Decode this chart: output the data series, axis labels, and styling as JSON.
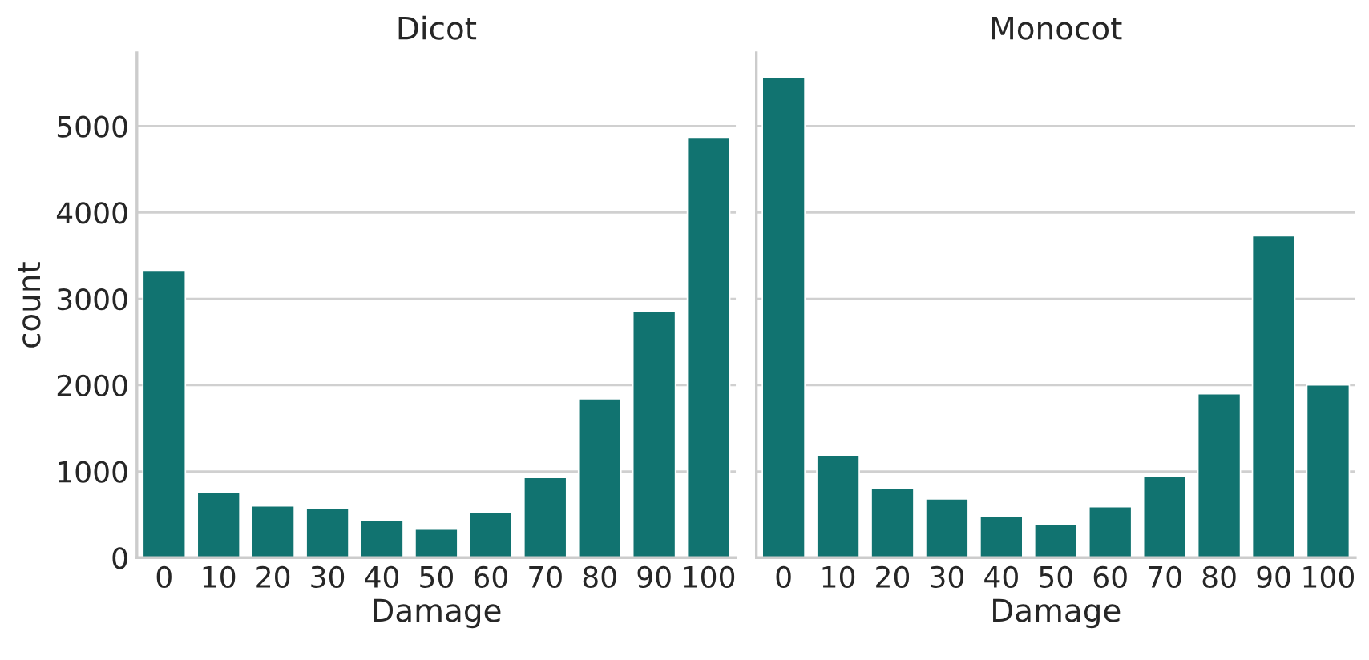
{
  "chart_data": [
    {
      "type": "bar",
      "title": "Dicot",
      "xlabel": "Damage",
      "ylabel": "count",
      "categories": [
        "0",
        "10",
        "20",
        "30",
        "40",
        "50",
        "60",
        "70",
        "80",
        "90",
        "100"
      ],
      "color": "#117370",
      "values": [
        3330,
        760,
        600,
        570,
        430,
        330,
        520,
        930,
        1840,
        2860,
        4870
      ],
      "ylim": [
        0,
        5850
      ],
      "yticks": [
        0,
        1000,
        2000,
        3000,
        4000,
        5000
      ],
      "grid": "y",
      "legend": false
    },
    {
      "type": "bar",
      "title": "Monocot",
      "xlabel": "Damage",
      "categories": [
        "0",
        "10",
        "20",
        "30",
        "40",
        "50",
        "60",
        "70",
        "80",
        "90",
        "100"
      ],
      "color": "#117370",
      "values": [
        5570,
        1190,
        800,
        680,
        480,
        390,
        590,
        940,
        1900,
        3730,
        2000
      ],
      "ylim": [
        0,
        5850
      ],
      "yticks": [
        0,
        1000,
        2000,
        3000,
        4000,
        5000
      ],
      "grid": "y",
      "legend": false,
      "tick_labels": "x"
    }
  ]
}
